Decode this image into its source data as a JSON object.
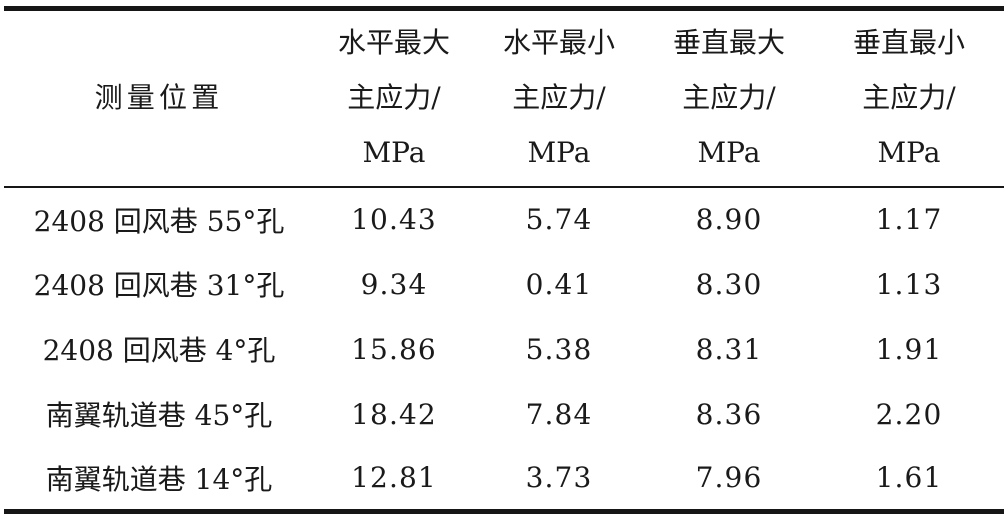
{
  "document": {
    "kind": "scanned-paper-table",
    "language": "zh"
  },
  "colors": {
    "background": "#ffffff",
    "text": "#1a1a1a",
    "rule": "#161616"
  },
  "table": {
    "columns": [
      {
        "label": "测量位置"
      },
      {
        "label": "水平最大\n主应力/\nMPa"
      },
      {
        "label": "水平最小\n主应力/\nMPa"
      },
      {
        "label": "垂直最大\n主应力/\nMPa"
      },
      {
        "label": "垂直最小\n主应力/\nMPa"
      }
    ],
    "rows": [
      {
        "location": "2408 回风巷 55°孔",
        "values": [
          "10.43",
          "5.74",
          "8.90",
          "1.17"
        ]
      },
      {
        "location": "2408 回风巷 31°孔",
        "values": [
          "9.34",
          "0.41",
          "8.30",
          "1.13"
        ]
      },
      {
        "location": "2408 回风巷 4°孔",
        "values": [
          "15.86",
          "5.38",
          "8.31",
          "1.91"
        ]
      },
      {
        "location": "南翼轨道巷 45°孔",
        "values": [
          "18.42",
          "7.84",
          "8.36",
          "2.20"
        ]
      },
      {
        "location": "南翼轨道巷 14°孔",
        "values": [
          "12.81",
          "3.73",
          "7.96",
          "1.61"
        ]
      }
    ]
  },
  "chart_data": {
    "type": "table",
    "title": "",
    "columns": [
      "测量位置",
      "水平最大主应力/MPa",
      "水平最小主应力/MPa",
      "垂直最大主应力/MPa",
      "垂直最小主应力/MPa"
    ],
    "rows": [
      [
        "2408 回风巷 55°孔",
        10.43,
        5.74,
        8.9,
        1.17
      ],
      [
        "2408 回风巷 31°孔",
        9.34,
        0.41,
        8.3,
        1.13
      ],
      [
        "2408 回风巷 4°孔",
        15.86,
        5.38,
        8.31,
        1.91
      ],
      [
        "南翼轨道巷 45°孔",
        18.42,
        7.84,
        8.36,
        2.2
      ],
      [
        "南翼轨道巷 14°孔",
        12.81,
        3.73,
        7.96,
        1.61
      ]
    ]
  }
}
